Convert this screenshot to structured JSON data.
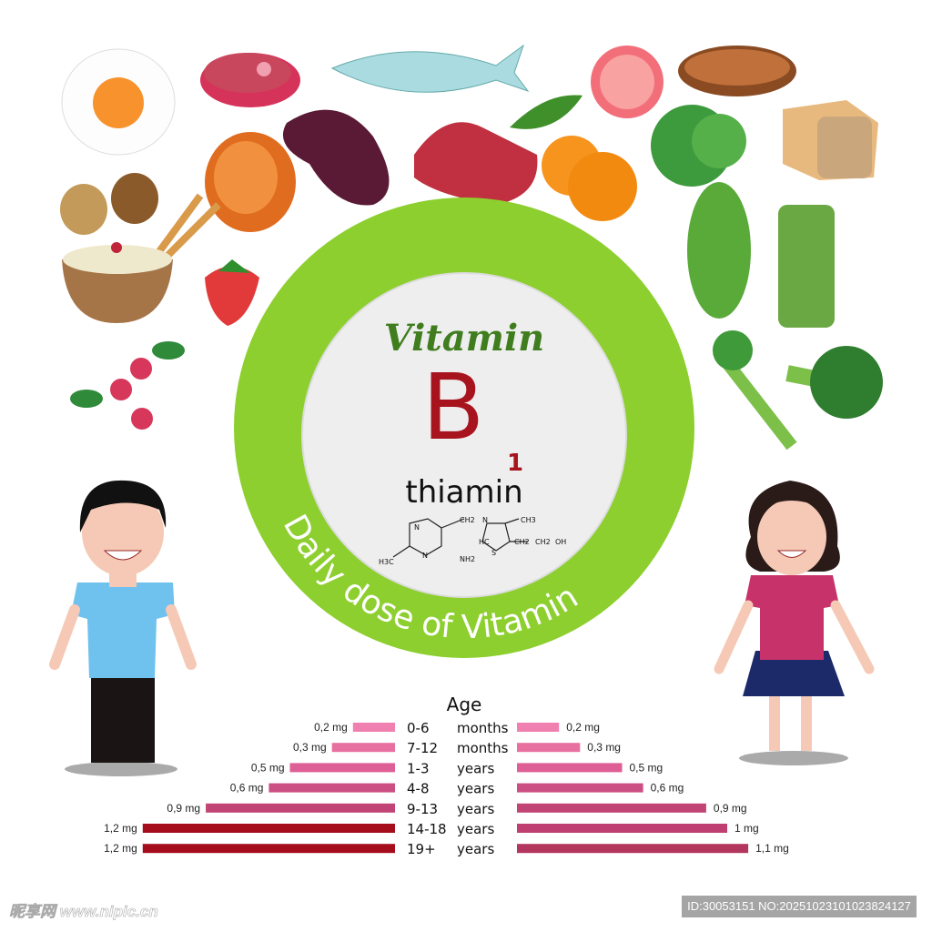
{
  "header": {
    "vitamin_label": "Vitamin",
    "letter": "B",
    "subscript": "1",
    "name": "thiamin",
    "ring_text": "Daily dose of Vitamin"
  },
  "molecule": {
    "labels": [
      "N",
      "N",
      "NH2",
      "CH2",
      "N",
      "CH3",
      "HC",
      "S",
      "CH2",
      "CH2",
      "OH",
      "H3C"
    ]
  },
  "colors": {
    "ring": "#8dcf2f",
    "inner": "#eeeeee",
    "title_green": "#3f7d1e",
    "letter_red": "#a8141e",
    "male_max": "#a50d1d"
  },
  "chart_data": {
    "type": "bar",
    "orientation": "horizontal-butterfly",
    "title": "Age",
    "categories": [
      "0-6",
      "7-12",
      "1-3",
      "4-8",
      "9-13",
      "14-18",
      "19+"
    ],
    "units": [
      "months",
      "months",
      "years",
      "years",
      "years",
      "years",
      "years"
    ],
    "series": [
      {
        "side": "left",
        "values": [
          0.2,
          0.3,
          0.5,
          0.6,
          0.9,
          1.2,
          1.2
        ],
        "labels": [
          "0,2 mg",
          "0,3 mg",
          "0,5 mg",
          "0,6 mg",
          "0,9 mg",
          "1,2 mg",
          "1,2 mg"
        ],
        "colors": [
          "#f080b0",
          "#e870a0",
          "#de5f95",
          "#cc4f84",
          "#c24476",
          "#a50d1d",
          "#a50d1d"
        ]
      },
      {
        "side": "right",
        "values": [
          0.2,
          0.3,
          0.5,
          0.6,
          0.9,
          1,
          1.1
        ],
        "labels": [
          "0,2 mg",
          "0,3 mg",
          "0,5 mg",
          "0,6 mg",
          "0,9 mg",
          "1 mg",
          "1,1 mg"
        ],
        "colors": [
          "#f080b0",
          "#e870a0",
          "#de5f95",
          "#cc4f84",
          "#c24476",
          "#bf3f72",
          "#b3365f"
        ]
      }
    ]
  },
  "watermark": {
    "left": "昵享网 www.nipic.cn",
    "right": "ID:30053151 NO:20251023101023824127"
  }
}
